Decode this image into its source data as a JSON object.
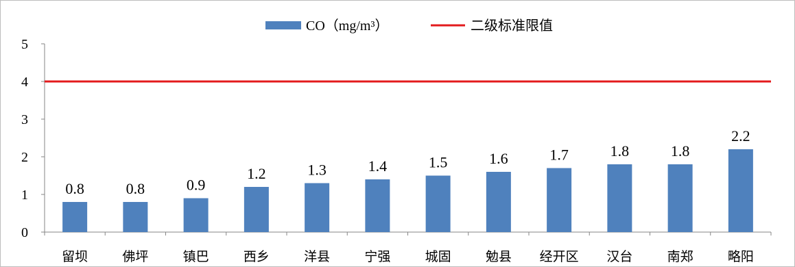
{
  "chart_data": {
    "type": "bar",
    "categories": [
      "留坝",
      "佛坪",
      "镇巴",
      "西乡",
      "洋县",
      "宁强",
      "城固",
      "勉县",
      "经开区",
      "汉台",
      "南郑",
      "略阳"
    ],
    "series": [
      {
        "name": "CO（mg/m³）",
        "values": [
          0.8,
          0.8,
          0.9,
          1.2,
          1.3,
          1.4,
          1.5,
          1.6,
          1.7,
          1.8,
          1.8,
          2.2
        ],
        "color": "#4f81bd"
      }
    ],
    "reference_line": {
      "name": "二级标准限值",
      "value": 4,
      "color": "#e31a1c"
    },
    "ylim": [
      0,
      5
    ],
    "yticks": [
      0,
      1,
      2,
      3,
      4,
      5
    ],
    "legend_position": "top",
    "grid": false
  }
}
